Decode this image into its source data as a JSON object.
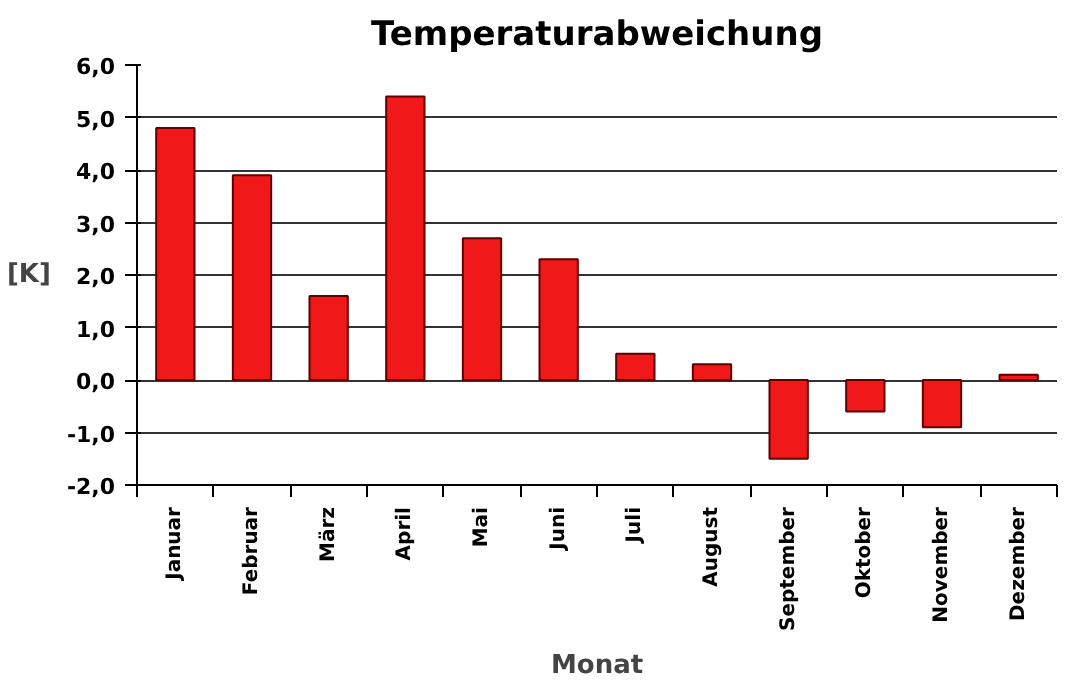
{
  "chart_data": {
    "type": "bar",
    "title": "Temperaturabweichung",
    "xlabel": "Monat",
    "ylabel": "[K]",
    "categories": [
      "Januar",
      "Februar",
      "März",
      "April",
      "Mai",
      "Juni",
      "Juli",
      "August",
      "September",
      "Oktober",
      "November",
      "Dezember"
    ],
    "values": [
      4.8,
      3.9,
      1.6,
      5.4,
      2.7,
      2.3,
      0.5,
      0.3,
      -1.5,
      -0.6,
      -0.9,
      0.1
    ],
    "color": "#f01818",
    "ylim": [
      -2,
      6
    ],
    "yticks": [
      {
        "value": -2,
        "label": "-2,0"
      },
      {
        "value": -1,
        "label": "-1,0"
      },
      {
        "value": 0,
        "label": "0,0"
      },
      {
        "value": 1,
        "label": "1,0"
      },
      {
        "value": 2,
        "label": "2,0"
      },
      {
        "value": 3,
        "label": "3,0"
      },
      {
        "value": 4,
        "label": "4,0"
      },
      {
        "value": 5,
        "label": "5,0"
      },
      {
        "value": 6,
        "label": "6,0"
      }
    ],
    "grid": "y"
  }
}
